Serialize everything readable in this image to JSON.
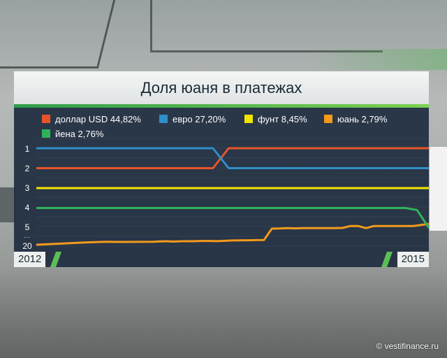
{
  "title": "Доля юаня в платежах",
  "watermark": "© vestifinance.ru",
  "years": {
    "start": "2012",
    "end": "2015"
  },
  "rank_labels": [
    "1",
    "2",
    "3",
    "4",
    "5",
    "…",
    "20"
  ],
  "legend": [
    {
      "label": "доллар USD 44,82%",
      "color": "#e8542a"
    },
    {
      "label": "евро 27,20%",
      "color": "#2f8fc9"
    },
    {
      "label": "фунт 8,45%",
      "color": "#f2e400"
    },
    {
      "label": "юань 2,79%",
      "color": "#f29a1c"
    },
    {
      "label": "йена 2,76%",
      "color": "#2fb35a"
    }
  ],
  "chart_data": {
    "type": "line",
    "title": "Доля юаня в платежах",
    "x_start": "2012",
    "x_end": "2015",
    "y_axis": "rank",
    "y_tick_labels": [
      "1",
      "2",
      "3",
      "4",
      "5",
      "…",
      "20"
    ],
    "series": [
      {
        "name": "доллар USD 44,82%",
        "color": "#e8542a",
        "x": [
          0,
          0.45,
          0.49,
          1
        ],
        "rank": [
          2,
          2,
          1,
          1
        ]
      },
      {
        "name": "евро 27,20%",
        "color": "#2f8fc9",
        "x": [
          0,
          0.45,
          0.49,
          1
        ],
        "rank": [
          1,
          1,
          2,
          2
        ]
      },
      {
        "name": "фунт 8,45%",
        "color": "#f2e400",
        "x": [
          0,
          1
        ],
        "rank": [
          3,
          3
        ]
      },
      {
        "name": "юань 2,79%",
        "color": "#f29a1c",
        "x": [
          0,
          0.05,
          0.1,
          0.15,
          0.18,
          0.2,
          0.23,
          0.3,
          0.31,
          0.33,
          0.35,
          0.37,
          0.4,
          0.42,
          0.44,
          0.46,
          0.48,
          0.5,
          0.52,
          0.54,
          0.56,
          0.58,
          0.6,
          0.62,
          0.64,
          0.66,
          0.68,
          0.7,
          0.72,
          0.74,
          0.76,
          0.78,
          0.8,
          0.82,
          0.84,
          0.86,
          0.88,
          0.9,
          0.92,
          0.94,
          0.96,
          1.0
        ],
        "rank": [
          20,
          19.2,
          18.4,
          17.6,
          17.4,
          17.5,
          17.5,
          17.4,
          17.1,
          16.9,
          17.2,
          16.9,
          16.9,
          16.6,
          16.6,
          16.8,
          16.5,
          16.2,
          16.1,
          16.0,
          15.9,
          15.8,
          5.6,
          5.5,
          5.2,
          5.4,
          5.2,
          5.2,
          5.2,
          5.2,
          5.2,
          5.0,
          4.9,
          4.9,
          5.2,
          4.9,
          4.9,
          4.9,
          4.9,
          4.9,
          4.9,
          4.8
        ]
      },
      {
        "name": "йена 2,76%",
        "color": "#2fb35a",
        "x": [
          0,
          0.9,
          0.94,
          0.97,
          1.0
        ],
        "rank": [
          4,
          4,
          4,
          4.1,
          5
        ]
      }
    ]
  }
}
